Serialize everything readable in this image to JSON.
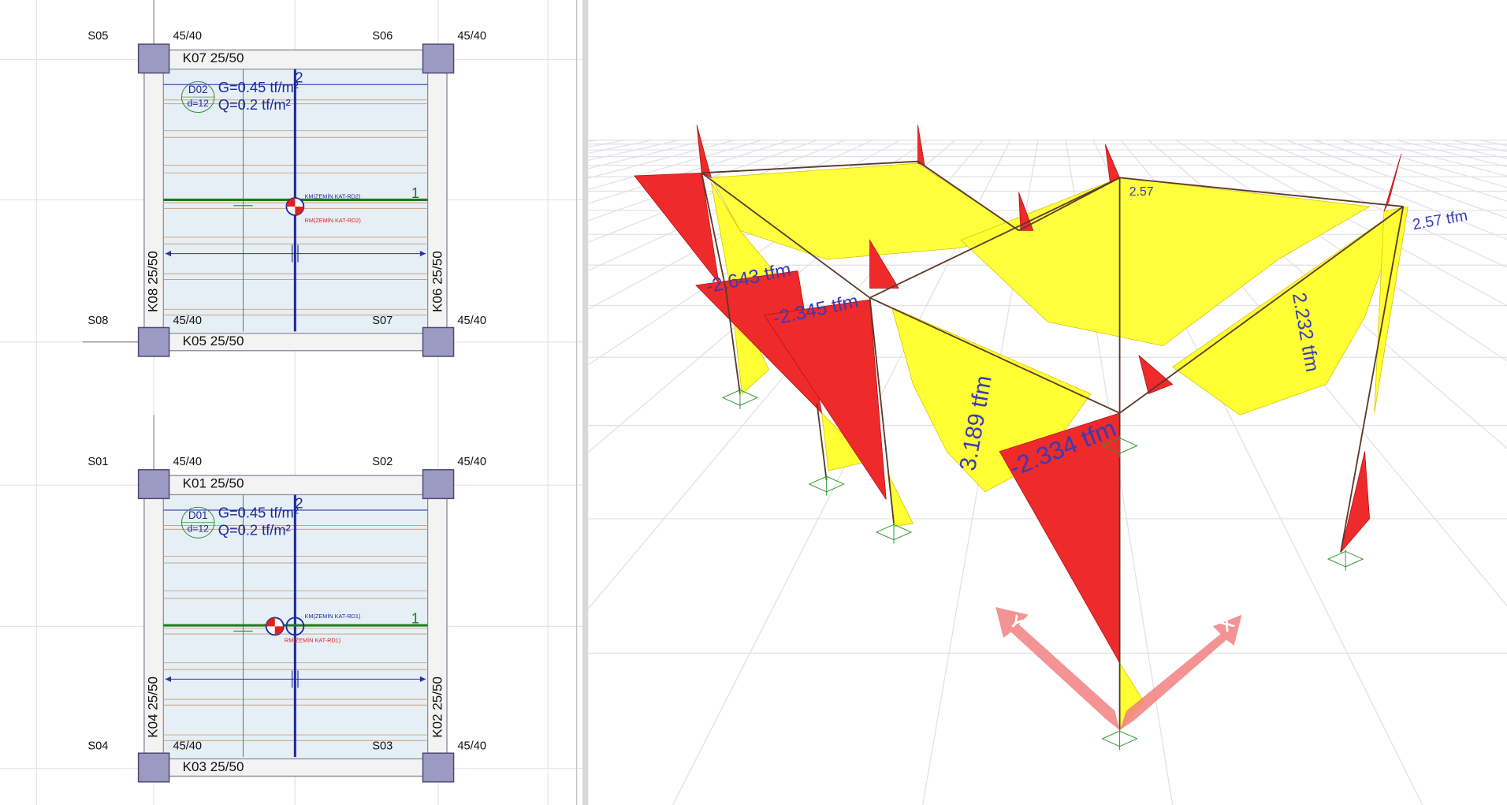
{
  "plans": [
    {
      "columns": [
        {
          "name": "S05",
          "size": "45/40"
        },
        {
          "name": "S06",
          "size": "45/40"
        },
        {
          "name": "S08",
          "size": "45/40"
        },
        {
          "name": "S07",
          "size": "45/40"
        }
      ],
      "beams": [
        "K07 25/50",
        "K05 25/50",
        "K08 25/50",
        "K06 25/50"
      ],
      "slab": {
        "name": "D02",
        "thickness": "d=12",
        "dead_load": "G=0.45 tf/m²",
        "live_load": "Q=0.2 tf/m²"
      },
      "axes": [
        "1",
        "2"
      ],
      "centers": [
        "KM(ZEMİN KAT-RD2)",
        "RM(ZEMİN KAT-RD2)"
      ]
    },
    {
      "columns": [
        {
          "name": "S01",
          "size": "45/40"
        },
        {
          "name": "S02",
          "size": "45/40"
        },
        {
          "name": "S04",
          "size": "45/40"
        },
        {
          "name": "S03",
          "size": "45/40"
        }
      ],
      "beams": [
        "K01 25/50",
        "K03 25/50",
        "K04 25/50",
        "K02 25/50"
      ],
      "slab": {
        "name": "D01",
        "thickness": "d=12",
        "dead_load": "G=0.45 tf/m²",
        "live_load": "Q=0.2 tf/m²"
      },
      "axes": [
        "1",
        "2"
      ],
      "centers": [
        "KM(ZEMİN KAT-RD1)",
        "RM(ZEMİN KAT-RD1)"
      ]
    }
  ],
  "view3d": {
    "moment_labels": [
      "-2.643 tfm",
      "-2.345 tfm",
      "3.189 tfm",
      "-2.334 tfm",
      "2.232 tfm",
      "2.57 tfm",
      "2.57"
    ],
    "axes": [
      "Y",
      "X"
    ]
  }
}
